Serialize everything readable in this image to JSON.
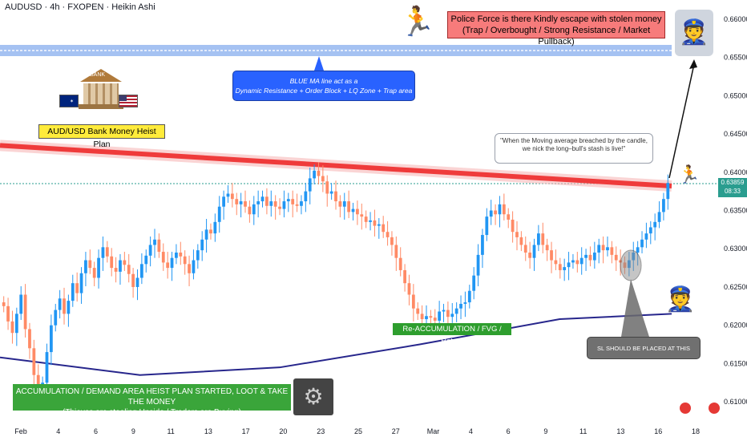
{
  "header": {
    "title": "AUDUSD · 4h · FXOPEN · Heikin Ashi"
  },
  "annotations": {
    "police": "Police Force is there Kindly escape with stolen money",
    "police_sub": "(Trap / Overbought / Strong Resistance / Market Pullback)",
    "blue_ma": "BLUE MA line act as a",
    "blue_ma_sub": "Dynamic Resistance + Order Block + LQ Zone + Trap area",
    "bank_label": "BANK",
    "heist_plan": "AUD/USD Bank Money Heist Plan",
    "quote": "\"When the Moving average breached by the candle, we nick the long–bull's stash is live!\"",
    "reaccumulation": "Re-ACCUMULATION / FVG / Retest",
    "stop_loss": "SL SHOULD BE PLACED AT THIS LEVEL",
    "accumulation": "ACCUMULATION / DEMAND AREA HEIST PLAN STARTED, LOOT & TAKE THE MONEY",
    "accumulation_sub": "(Thieves are stealing Upside / Traders are Buying)"
  },
  "price_tag": {
    "price": "0.63859",
    "countdown": "08:33"
  },
  "colors": {
    "bull": "#2196f3",
    "bear": "#ff8a65",
    "red_ma": "#ef3b3b",
    "blue_ma": "#27268c",
    "blue_band": "#5b8fe8"
  },
  "chart_data": {
    "type": "candlestick",
    "symbol": "AUDUSD",
    "timeframe": "4h",
    "ylim": [
      0.6075,
      0.6625
    ],
    "y_ticks": [
      "0.66000",
      "0.65500",
      "0.65000",
      "0.64500",
      "0.64000",
      "0.63500",
      "0.63000",
      "0.62500",
      "0.62000",
      "0.61500",
      "0.61000"
    ],
    "x_ticks": [
      "Feb",
      "4",
      "6",
      "9",
      "11",
      "13",
      "17",
      "20",
      "23",
      "25",
      "27",
      "Mar",
      "4",
      "6",
      "9",
      "11",
      "13",
      "16",
      "18"
    ],
    "last_price": 0.63859,
    "candle_closes": [
      0.6225,
      0.6205,
      0.619,
      0.6215,
      0.624,
      0.6195,
      0.617,
      0.6135,
      0.6105,
      0.6125,
      0.6165,
      0.62,
      0.622,
      0.6235,
      0.6215,
      0.6232,
      0.6255,
      0.6242,
      0.6268,
      0.6285,
      0.6275,
      0.6262,
      0.6288,
      0.6302,
      0.629,
      0.6275,
      0.627,
      0.6285,
      0.6279,
      0.6267,
      0.625,
      0.6262,
      0.628,
      0.6291,
      0.6305,
      0.6312,
      0.6296,
      0.6282,
      0.6275,
      0.6288,
      0.6295,
      0.629,
      0.628,
      0.6268,
      0.6285,
      0.6298,
      0.6312,
      0.6325,
      0.632,
      0.6335,
      0.6355,
      0.6368,
      0.6372,
      0.6365,
      0.6358,
      0.6362,
      0.6355,
      0.6345,
      0.6358,
      0.6362,
      0.6368,
      0.6356,
      0.6362,
      0.6355,
      0.6352,
      0.6362,
      0.6365,
      0.6358,
      0.6356,
      0.6362,
      0.6375,
      0.6392,
      0.6402,
      0.6395,
      0.6388,
      0.6372,
      0.6375,
      0.6362,
      0.6355,
      0.6362,
      0.6348,
      0.6352,
      0.6345,
      0.6342,
      0.6335,
      0.6337,
      0.633,
      0.6332,
      0.6322,
      0.6315,
      0.6305,
      0.6288,
      0.6272,
      0.6255,
      0.624,
      0.6222,
      0.6215,
      0.6208,
      0.6212,
      0.621,
      0.6206,
      0.6218,
      0.622,
      0.6211,
      0.6215,
      0.6222,
      0.6228,
      0.623,
      0.6245,
      0.6265,
      0.6292,
      0.6318,
      0.6342,
      0.635,
      0.6345,
      0.6358,
      0.6345,
      0.6338,
      0.6322,
      0.6315,
      0.6305,
      0.6295,
      0.6288,
      0.6305,
      0.632,
      0.6305,
      0.6298,
      0.6285,
      0.628,
      0.6272,
      0.6276,
      0.6282,
      0.6285,
      0.628,
      0.6288,
      0.6292,
      0.6285,
      0.6295,
      0.6305,
      0.6298,
      0.6302,
      0.6292,
      0.6285,
      0.6282,
      0.6275,
      0.6285,
      0.6295,
      0.6302,
      0.6312,
      0.632,
      0.6328,
      0.6335,
      0.6348,
      0.6365,
      0.6386
    ],
    "series": [
      {
        "name": "Red MA",
        "x_days": [
          0,
          48
        ],
        "values": [
          0.6435,
          0.6382
        ]
      },
      {
        "name": "Blue MA",
        "x_days": [
          0,
          10,
          20,
          30,
          40,
          48
        ],
        "values": [
          0.6158,
          0.6135,
          0.6145,
          0.6175,
          0.6208,
          0.6215
        ]
      }
    ]
  }
}
